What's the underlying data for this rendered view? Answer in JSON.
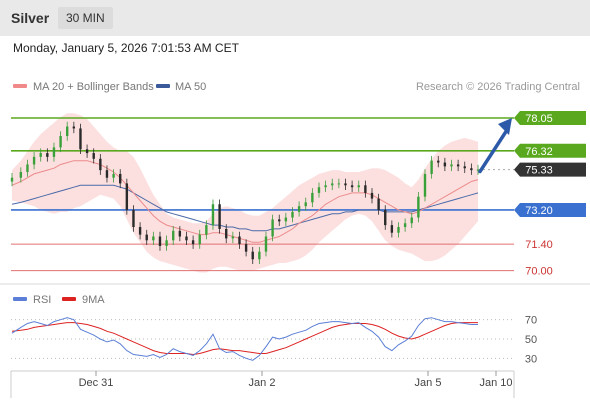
{
  "header": {
    "title": "Silver",
    "timeframe": "30 MIN",
    "datetime": "Monday, January 5, 2026 7:01:53 AM CET"
  },
  "legend": {
    "items": [
      {
        "label": "MA 20 + Bollinger Bands",
        "color": "#f08a8a"
      },
      {
        "label": "MA 50",
        "color": "#3a5a9a"
      }
    ],
    "credit": "Research © 2026 Trading Central"
  },
  "rsi_legend": {
    "items": [
      {
        "label": "RSI",
        "color": "#5b7fd6"
      },
      {
        "label": "9MA",
        "color": "#dd2222"
      }
    ]
  },
  "chart_data": {
    "type": "line",
    "x_ticks": [
      "Dec 31",
      "Jan 2",
      "Jan 5",
      "Jan 10"
    ],
    "price_levels": [
      {
        "value": 78.05,
        "label": "78.05",
        "color": "#5aa81e"
      },
      {
        "value": 76.32,
        "label": "76.32",
        "color": "#5aa81e"
      },
      {
        "value": 75.33,
        "label": "75.33",
        "color": "#333333"
      },
      {
        "value": 73.2,
        "label": "73.20",
        "color": "#3a70d0"
      },
      {
        "value": 71.4,
        "label": "71.40",
        "color": "#e07070"
      },
      {
        "value": 70.0,
        "label": "70.00",
        "color": "#e07070"
      }
    ],
    "ylim": [
      69.4,
      79.0
    ],
    "price_series": {
      "x": [
        0,
        4,
        7,
        10,
        13,
        16,
        19,
        22,
        25,
        28,
        31,
        34,
        37,
        40,
        43,
        46,
        49,
        52,
        55,
        58,
        61,
        64,
        67,
        70,
        73,
        76,
        79,
        82,
        85,
        88,
        91,
        94,
        97,
        100,
        103,
        106,
        109,
        112,
        115,
        118,
        121,
        124,
        127,
        130,
        133,
        136,
        139,
        142,
        145,
        148,
        151,
        154,
        157,
        160,
        163,
        166,
        169,
        172,
        175,
        178,
        181,
        184,
        187,
        190,
        193,
        196,
        199,
        202,
        205,
        208,
        211
      ],
      "close": [
        74.9,
        75.2,
        75.6,
        76.0,
        76.2,
        76.0,
        76.5,
        77.1,
        77.6,
        77.5,
        76.4,
        76.2,
        75.9,
        75.3,
        74.9,
        75.1,
        74.6,
        73.2,
        72.3,
        71.9,
        71.6,
        71.8,
        71.3,
        71.6,
        72.1,
        71.8,
        71.6,
        71.4,
        71.9,
        72.4,
        73.5,
        72.2,
        71.7,
        71.8,
        71.4,
        71.0,
        70.6,
        71.0,
        71.8,
        72.7,
        72.6,
        72.8,
        73.1,
        73.4,
        73.6,
        74.1,
        74.4,
        74.5,
        74.6,
        74.6,
        74.5,
        74.4,
        74.5,
        74.1,
        73.8,
        73.2,
        72.4,
        72.0,
        72.3,
        72.5,
        72.8,
        73.9,
        75.1,
        75.8,
        75.7,
        75.5,
        75.6,
        75.5,
        75.4,
        75.3,
        75.33
      ],
      "ma20": [
        74.5,
        74.7,
        74.9,
        75.1,
        75.2,
        75.3,
        75.4,
        75.6,
        75.7,
        75.8,
        75.8,
        75.8,
        75.7,
        75.6,
        75.4,
        75.2,
        74.9,
        74.5,
        74.1,
        73.7,
        73.3,
        72.9,
        72.6,
        72.4,
        72.3,
        72.2,
        72.1,
        72.0,
        71.9,
        71.9,
        72.0,
        72.0,
        71.9,
        71.8,
        71.7,
        71.6,
        71.5,
        71.5,
        71.6,
        71.7,
        71.8,
        72.0,
        72.2,
        72.5,
        72.7,
        72.9,
        73.2,
        73.5,
        73.7,
        73.9,
        74.0,
        74.1,
        74.1,
        74.1,
        74.0,
        73.8,
        73.6,
        73.4,
        73.2,
        73.1,
        73.0,
        73.1,
        73.3,
        73.5,
        73.7,
        73.9,
        74.1,
        74.3,
        74.5,
        74.7,
        74.8
      ],
      "upper": [
        75.3,
        75.8,
        76.3,
        76.8,
        77.2,
        77.5,
        77.8,
        78.1,
        78.3,
        78.3,
        78.2,
        78.0,
        77.6,
        77.2,
        76.8,
        76.5,
        76.3,
        76.3,
        76.0,
        75.4,
        74.7,
        74.0,
        73.5,
        73.0,
        72.8,
        72.7,
        72.6,
        72.5,
        72.5,
        72.6,
        73.0,
        73.3,
        73.4,
        73.3,
        73.2,
        73.0,
        72.9,
        72.9,
        73.1,
        73.3,
        73.6,
        73.9,
        74.2,
        74.5,
        74.7,
        74.9,
        75.1,
        75.2,
        75.3,
        75.3,
        75.2,
        75.2,
        75.2,
        75.3,
        75.4,
        75.4,
        75.3,
        75.1,
        74.9,
        74.6,
        74.4,
        74.8,
        75.4,
        75.9,
        76.3,
        76.6,
        76.8,
        76.9,
        77.0,
        76.9,
        76.8
      ],
      "lower": [
        73.7,
        73.6,
        73.5,
        73.4,
        73.2,
        73.1,
        73.0,
        73.1,
        73.1,
        73.3,
        73.4,
        73.6,
        73.8,
        74.0,
        73.9,
        73.8,
        73.4,
        72.7,
        72.0,
        71.5,
        71.0,
        70.7,
        70.5,
        70.4,
        70.3,
        70.2,
        70.1,
        70.0,
        69.9,
        69.9,
        70.1,
        70.2,
        70.2,
        70.1,
        70.0,
        70.0,
        70.0,
        70.1,
        70.2,
        70.3,
        70.4,
        70.4,
        70.5,
        70.6,
        70.8,
        71.1,
        71.5,
        71.8,
        72.1,
        72.4,
        72.7,
        72.9,
        73.0,
        72.9,
        72.6,
        72.1,
        71.6,
        71.3,
        71.1,
        71.0,
        70.9,
        70.7,
        70.5,
        70.5,
        70.6,
        70.8,
        71.1,
        71.4,
        71.8,
        72.2,
        72.6
      ],
      "ma50": [
        73.5,
        73.6,
        73.7,
        73.8,
        73.9,
        74.0,
        74.1,
        74.2,
        74.3,
        74.4,
        74.5,
        74.5,
        74.5,
        74.5,
        74.5,
        74.5,
        74.4,
        74.3,
        74.1,
        73.9,
        73.7,
        73.5,
        73.3,
        73.1,
        73.0,
        72.9,
        72.8,
        72.7,
        72.6,
        72.5,
        72.4,
        72.4,
        72.3,
        72.3,
        72.2,
        72.2,
        72.1,
        72.1,
        72.1,
        72.2,
        72.2,
        72.3,
        72.4,
        72.5,
        72.6,
        72.7,
        72.8,
        72.9,
        73.0,
        73.0,
        73.1,
        73.1,
        73.2,
        73.2,
        73.2,
        73.2,
        73.1,
        73.1,
        73.1,
        73.1,
        73.1,
        73.2,
        73.3,
        73.4,
        73.5,
        73.6,
        73.7,
        73.8,
        73.9,
        74.0,
        74.1
      ]
    },
    "forecast_arrow": {
      "from": 75.33,
      "to": 78.05
    },
    "rsi": {
      "ylim": [
        20,
        80
      ],
      "levels": [
        70,
        50,
        30
      ],
      "rsi": [
        56,
        62,
        66,
        68,
        66,
        64,
        68,
        70,
        72,
        70,
        60,
        57,
        54,
        50,
        47,
        49,
        45,
        38,
        34,
        33,
        32,
        34,
        31,
        34,
        40,
        37,
        35,
        33,
        38,
        45,
        55,
        40,
        36,
        37,
        33,
        30,
        28,
        33,
        42,
        52,
        50,
        52,
        55,
        57,
        59,
        63,
        66,
        67,
        68,
        68,
        67,
        66,
        67,
        62,
        58,
        52,
        42,
        38,
        44,
        48,
        53,
        64,
        71,
        72,
        70,
        68,
        68,
        67,
        66,
        65,
        65
      ],
      "ma9": [
        58,
        59,
        60,
        62,
        63,
        64,
        65,
        66,
        67,
        67,
        66,
        65,
        63,
        61,
        58,
        56,
        53,
        50,
        47,
        44,
        41,
        38,
        36,
        35,
        35,
        35,
        35,
        34,
        35,
        37,
        39,
        40,
        39,
        38,
        38,
        37,
        36,
        35,
        35,
        37,
        39,
        41,
        44,
        47,
        50,
        53,
        56,
        59,
        62,
        64,
        65,
        66,
        66,
        66,
        65,
        63,
        60,
        56,
        53,
        51,
        50,
        52,
        55,
        58,
        61,
        64,
        66,
        67,
        67,
        67,
        67
      ]
    }
  }
}
